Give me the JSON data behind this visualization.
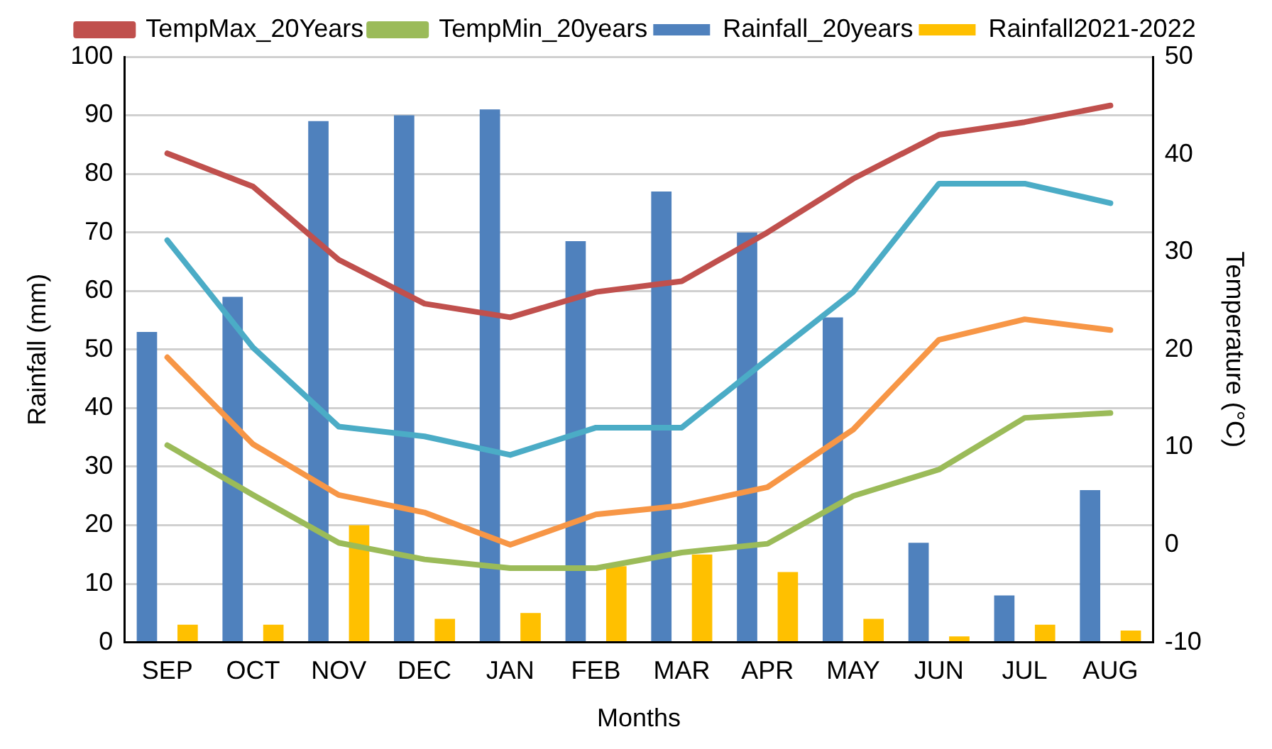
{
  "chart_data": {
    "type": "bar",
    "xlabel": "Months",
    "ylabel": "Rainfall (mm)",
    "y2label": "Temperature (°C)",
    "categories": [
      "SEP",
      "OCT",
      "NOV",
      "DEC",
      "JAN",
      "FEB",
      "MAR",
      "APR",
      "MAY",
      "JUN",
      "JUL",
      "AUG"
    ],
    "series": [
      {
        "name": "Rainfall_20years",
        "color": "#4f81bd",
        "values": [
          53,
          59,
          89,
          90,
          91,
          68.5,
          77,
          70,
          55.5,
          17,
          8,
          26
        ]
      },
      {
        "name": "Rainfall2021-2022",
        "color": "#ffc000",
        "values": [
          3,
          3,
          20,
          4,
          5,
          13,
          15,
          12,
          4,
          1,
          3,
          2
        ]
      },
      {
        "name": "TempMax_20Years",
        "type": "line",
        "axis": "y2",
        "color": "#c0504d",
        "values": [
          40.1,
          36.7,
          29.2,
          24.7,
          23.3,
          25.9,
          27,
          32,
          37.5,
          42,
          43.3,
          45
        ]
      },
      {
        "name": "TempMin_20years",
        "type": "line",
        "axis": "y2",
        "color": "#9bbb59",
        "values": [
          10.2,
          5.1,
          0.2,
          -1.5,
          -2.4,
          -2.4,
          -0.8,
          0.1,
          5,
          7.7,
          13,
          13.5
        ]
      },
      {
        "type": "line",
        "axis": "y2",
        "color": "#4bacc6",
        "values": [
          31.2,
          20.2,
          12.1,
          11.1,
          9.2,
          12,
          12,
          19,
          25.9,
          37,
          37,
          35
        ]
      },
      {
        "type": "line",
        "axis": "y2",
        "color": "#f79646",
        "values": [
          19.2,
          10.3,
          5.1,
          3.3,
          0,
          3.1,
          4,
          5.9,
          11.8,
          21,
          23.1,
          22
        ]
      }
    ],
    "ylim": [
      0,
      100
    ],
    "yticks": [
      0,
      10,
      20,
      30,
      40,
      50,
      60,
      70,
      80,
      90,
      100
    ],
    "y2lim": [
      -10,
      50
    ],
    "y2ticks": [
      -10,
      0,
      10,
      20,
      30,
      40,
      50
    ],
    "grid": "y",
    "legend": "top",
    "marker": "none",
    "line_style": "solid"
  }
}
